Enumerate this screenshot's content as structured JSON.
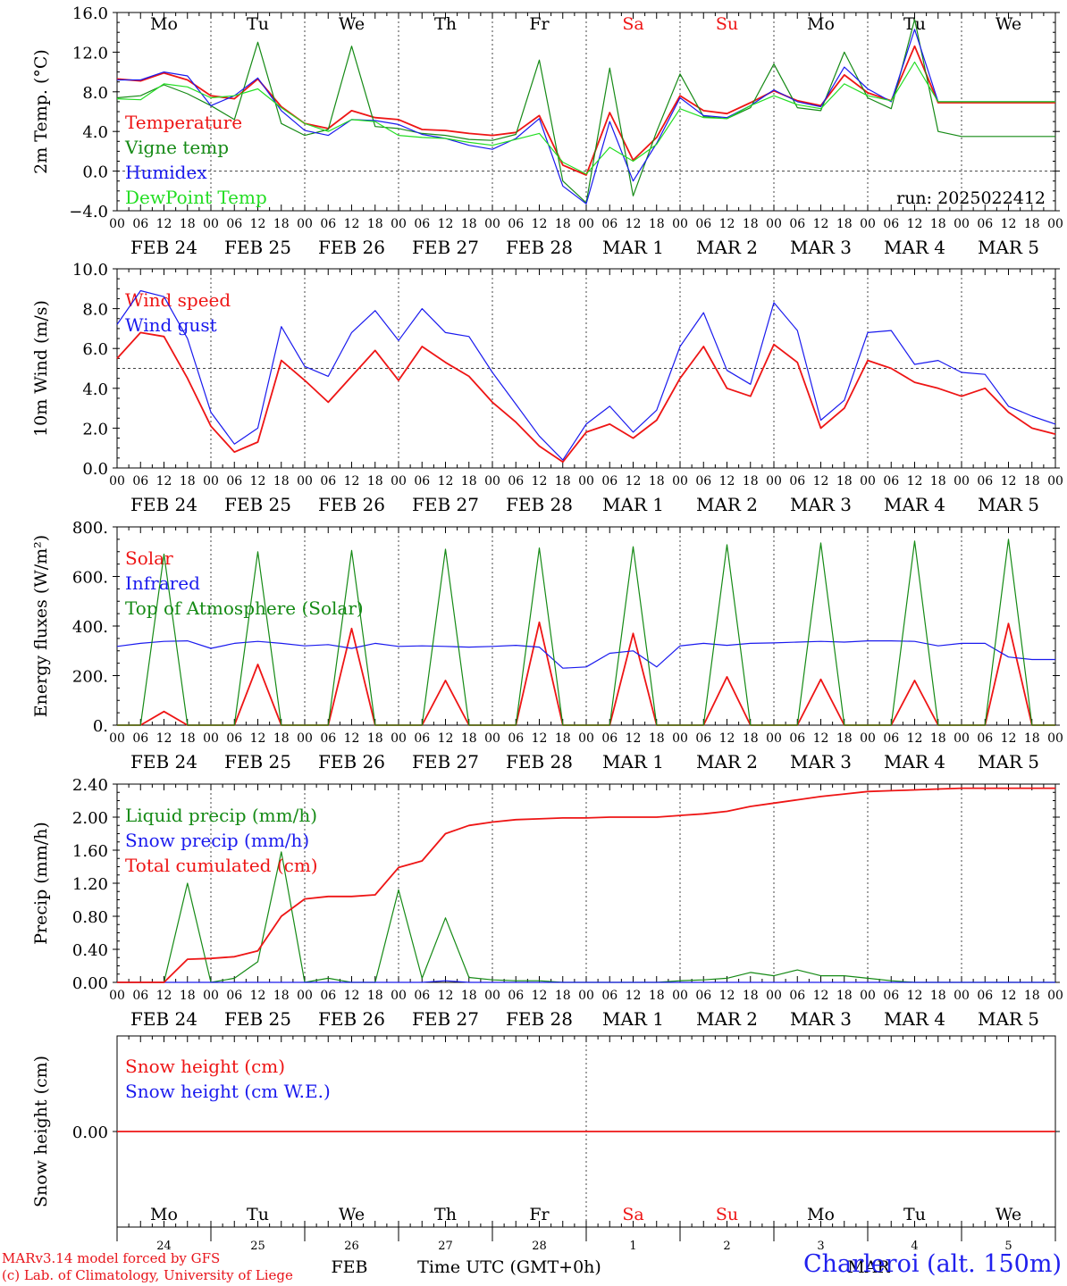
{
  "colors": {
    "red": "#ee1515",
    "green": "#158a15",
    "blue": "#1a1aee",
    "lightgreen": "#22dd22",
    "grid": "#444444"
  },
  "days": [
    {
      "date": "FEB 24",
      "dow": "Mo",
      "dnum": "24",
      "weekend": false
    },
    {
      "date": "FEB 25",
      "dow": "Tu",
      "dnum": "25",
      "weekend": false
    },
    {
      "date": "FEB 26",
      "dow": "We",
      "dnum": "26",
      "weekend": false
    },
    {
      "date": "FEB 27",
      "dow": "Th",
      "dnum": "27",
      "weekend": false
    },
    {
      "date": "FEB 28",
      "dow": "Fr",
      "dnum": "28",
      "weekend": false
    },
    {
      "date": "MAR  1",
      "dow": "Sa",
      "dnum": "1",
      "weekend": true
    },
    {
      "date": "MAR  2",
      "dow": "Su",
      "dnum": "2",
      "weekend": true
    },
    {
      "date": "MAR  3",
      "dow": "Mo",
      "dnum": "3",
      "weekend": false
    },
    {
      "date": "MAR  4",
      "dow": "Tu",
      "dnum": "4",
      "weekend": false
    },
    {
      "date": "MAR  5",
      "dow": "We",
      "dnum": "5",
      "weekend": false
    }
  ],
  "hour_ticks": [
    "00",
    "06",
    "12",
    "18"
  ],
  "bottom_month_labels": {
    "feb": "FEB",
    "mar": "MAR"
  },
  "time_axis_label": "Time UTC (GMT+0h)",
  "footer": {
    "line1": "MARv3.14 model forced by GFS",
    "line2": "(c) Lab. of Climatology, University of Liege",
    "station": "Charleroi (alt. 150m)"
  },
  "chart_data": [
    {
      "id": "temp",
      "type": "line",
      "ylabel": "2m Temp. (°C)",
      "ylim": [
        -4,
        16
      ],
      "yticks": [
        "16.0",
        "12.0",
        "8.0",
        "4.0",
        "0.0",
        "−4.0"
      ],
      "ytick_values": [
        16,
        12,
        8,
        4,
        0,
        -4
      ],
      "ref_line": 0,
      "annotation": "run: 2025022412",
      "show_dow": true,
      "x_hours": [
        0,
        6,
        12,
        18,
        24,
        30,
        36,
        42,
        48,
        54,
        60,
        66,
        72,
        78,
        84,
        90,
        96,
        102,
        108,
        114,
        120,
        126,
        132,
        138,
        144,
        150,
        156,
        162,
        168,
        174,
        180,
        186,
        192,
        198,
        204,
        210,
        216,
        222,
        228,
        234,
        240
      ],
      "series": [
        {
          "name": "Temperature",
          "color": "red",
          "values": [
            9.3,
            9.1,
            9.9,
            9.2,
            7.6,
            7.3,
            9.3,
            6.5,
            4.8,
            4.3,
            6.1,
            5.4,
            5.2,
            4.2,
            4.1,
            3.8,
            3.6,
            3.9,
            5.6,
            0.6,
            -0.4,
            5.9,
            1.1,
            3.4,
            7.6,
            6.1,
            5.8,
            6.9,
            8.1,
            7.1,
            6.6,
            9.7,
            7.9,
            7.1,
            12.6,
            6.9,
            6.9,
            6.9,
            6.9,
            6.9,
            6.9
          ]
        },
        {
          "name": "Vigne temp",
          "color": "green",
          "values": [
            7.4,
            7.6,
            8.7,
            7.8,
            6.6,
            5.2,
            13.0,
            4.8,
            3.6,
            4.2,
            12.6,
            4.5,
            4.3,
            3.8,
            3.6,
            3.2,
            3.1,
            3.7,
            11.2,
            -1.0,
            -3.2,
            10.4,
            -2.5,
            4.0,
            9.8,
            5.5,
            5.3,
            6.4,
            10.8,
            6.4,
            6.1,
            12.0,
            7.4,
            6.3,
            15.3,
            4.0,
            3.5,
            3.5,
            3.5,
            3.5,
            3.5
          ]
        },
        {
          "name": "Humidex",
          "color": "blue",
          "values": [
            9.2,
            9.2,
            10.0,
            9.6,
            6.6,
            7.6,
            9.4,
            6.1,
            4.1,
            3.6,
            5.2,
            5.1,
            4.7,
            3.7,
            3.3,
            2.6,
            2.2,
            3.3,
            5.3,
            -1.5,
            -3.3,
            5.0,
            -1.0,
            2.8,
            7.4,
            5.6,
            5.4,
            6.6,
            8.2,
            7.0,
            6.5,
            10.5,
            8.3,
            7.0,
            14.3,
            7.0,
            7.0,
            7.0,
            7.0,
            7.0,
            7.0
          ]
        },
        {
          "name": "DewPoint Temp",
          "color": "lightgreen",
          "values": [
            7.3,
            7.2,
            8.8,
            8.5,
            7.4,
            7.6,
            8.3,
            6.4,
            4.8,
            4.0,
            5.2,
            5.0,
            3.6,
            3.4,
            3.3,
            2.9,
            2.6,
            3.2,
            3.8,
            0.9,
            -0.3,
            2.4,
            1.0,
            2.7,
            6.3,
            5.4,
            5.3,
            6.6,
            7.6,
            6.7,
            6.3,
            8.8,
            7.6,
            7.1,
            11.0,
            7.0,
            7.0,
            7.0,
            7.0,
            7.0,
            7.0
          ]
        }
      ]
    },
    {
      "id": "wind",
      "type": "line",
      "ylabel": "10m Wind (m/s)",
      "ylim": [
        0,
        10
      ],
      "yticks": [
        "10.0",
        "8.0",
        "6.0",
        "4.0",
        "2.0",
        "0.0"
      ],
      "ytick_values": [
        10,
        8,
        6,
        4,
        2,
        0
      ],
      "ref_line": 5,
      "x_hours": [
        0,
        6,
        12,
        18,
        24,
        30,
        36,
        42,
        48,
        54,
        60,
        66,
        72,
        78,
        84,
        90,
        96,
        102,
        108,
        114,
        120,
        126,
        132,
        138,
        144,
        150,
        156,
        162,
        168,
        174,
        180,
        186,
        192,
        198,
        204,
        210,
        216,
        222,
        228,
        234,
        240
      ],
      "series": [
        {
          "name": "Wind speed",
          "color": "red",
          "values": [
            5.5,
            6.8,
            6.6,
            4.5,
            2.1,
            0.8,
            1.3,
            5.4,
            4.4,
            3.3,
            4.6,
            5.9,
            4.4,
            6.1,
            5.3,
            4.6,
            3.3,
            2.3,
            1.1,
            0.3,
            1.8,
            2.2,
            1.5,
            2.4,
            4.5,
            6.1,
            4.0,
            3.6,
            6.2,
            5.3,
            2.0,
            3.0,
            5.4,
            5.0,
            4.3,
            4.0,
            3.6,
            4.0,
            2.8,
            2.0,
            1.7
          ]
        },
        {
          "name": "Wind gust",
          "color": "blue",
          "values": [
            7.2,
            8.9,
            8.6,
            6.5,
            2.8,
            1.2,
            2.0,
            7.1,
            5.1,
            4.6,
            6.8,
            7.9,
            6.4,
            8.0,
            6.8,
            6.6,
            4.8,
            3.2,
            1.6,
            0.4,
            2.2,
            3.1,
            1.8,
            2.9,
            6.1,
            7.8,
            4.9,
            4.2,
            8.3,
            6.9,
            2.4,
            3.4,
            6.8,
            6.9,
            5.2,
            5.4,
            4.8,
            4.7,
            3.1,
            2.6,
            2.2
          ]
        }
      ]
    },
    {
      "id": "energy",
      "type": "line",
      "ylabel": "Energy fluxes (W/m²)",
      "ylim": [
        0,
        800
      ],
      "yticks": [
        "800.",
        "600.",
        "400.",
        "200.",
        "0."
      ],
      "ytick_values": [
        800,
        600,
        400,
        200,
        0
      ],
      "ref_line": null,
      "x_hours": [
        0,
        6,
        12,
        18,
        24,
        30,
        36,
        42,
        48,
        54,
        60,
        66,
        72,
        78,
        84,
        90,
        96,
        102,
        108,
        114,
        120,
        126,
        132,
        138,
        144,
        150,
        156,
        162,
        168,
        174,
        180,
        186,
        192,
        198,
        204,
        210,
        216,
        222,
        228,
        234,
        240
      ],
      "series": [
        {
          "name": "Solar",
          "color": "red",
          "values": [
            0,
            0,
            55,
            0,
            0,
            0,
            245,
            0,
            0,
            0,
            390,
            0,
            0,
            0,
            180,
            0,
            0,
            0,
            415,
            0,
            0,
            0,
            370,
            0,
            0,
            0,
            195,
            0,
            0,
            0,
            185,
            0,
            0,
            0,
            180,
            0,
            0,
            0,
            410,
            0,
            0
          ]
        },
        {
          "name": "Infrared",
          "color": "blue",
          "values": [
            318,
            330,
            338,
            340,
            310,
            330,
            338,
            330,
            320,
            325,
            310,
            330,
            318,
            320,
            318,
            315,
            318,
            322,
            315,
            230,
            235,
            290,
            300,
            235,
            320,
            330,
            322,
            330,
            332,
            335,
            338,
            335,
            340,
            340,
            338,
            320,
            330,
            330,
            275,
            265,
            265
          ]
        },
        {
          "name": "Top of Atmosphere (Solar)",
          "color": "green",
          "values": [
            0,
            0,
            690,
            0,
            0,
            0,
            700,
            0,
            0,
            0,
            705,
            0,
            0,
            0,
            710,
            0,
            0,
            0,
            715,
            0,
            0,
            0,
            720,
            0,
            0,
            0,
            728,
            0,
            0,
            0,
            735,
            0,
            0,
            0,
            743,
            0,
            0,
            0,
            750,
            0,
            0
          ]
        }
      ]
    },
    {
      "id": "precip",
      "type": "line",
      "ylabel": "Precip (mm/h)",
      "ylim": [
        0,
        2.4
      ],
      "yticks": [
        "2.40",
        "2.00",
        "1.60",
        "1.20",
        "0.80",
        "0.40",
        "0.00"
      ],
      "ytick_values": [
        2.4,
        2.0,
        1.6,
        1.2,
        0.8,
        0.4,
        0
      ],
      "ref_line": null,
      "x_hours": [
        0,
        6,
        12,
        18,
        24,
        30,
        36,
        42,
        48,
        54,
        60,
        66,
        72,
        78,
        84,
        90,
        96,
        102,
        108,
        114,
        120,
        126,
        132,
        138,
        144,
        150,
        156,
        162,
        168,
        174,
        180,
        186,
        192,
        198,
        204,
        210,
        216,
        222,
        228,
        234,
        240
      ],
      "series": [
        {
          "name": "Liquid precip (mm/h)",
          "color": "green",
          "values": [
            0,
            0,
            0,
            1.2,
            0,
            0.05,
            0.25,
            1.58,
            0,
            0.05,
            0,
            0,
            1.12,
            0.05,
            0.78,
            0.06,
            0.03,
            0.02,
            0.02,
            0,
            0,
            0,
            0,
            0,
            0.02,
            0.03,
            0.05,
            0.12,
            0.08,
            0.15,
            0.08,
            0.08,
            0.05,
            0.02,
            0,
            0,
            0,
            0,
            0,
            0,
            0
          ]
        },
        {
          "name": "Snow precip (mm/h)",
          "color": "blue",
          "values": [
            0,
            0,
            0,
            0,
            0,
            0,
            0,
            0,
            0,
            0,
            0,
            0,
            0,
            0,
            0.02,
            0,
            0,
            0,
            0,
            0,
            0,
            0,
            0,
            0,
            0,
            0,
            0,
            0,
            0,
            0,
            0,
            0,
            0,
            0,
            0,
            0,
            0,
            0,
            0,
            0,
            0
          ]
        },
        {
          "name": "Total cumulated (cm)",
          "color": "red",
          "values": [
            0,
            0,
            0,
            0.28,
            0.29,
            0.31,
            0.38,
            0.8,
            1.01,
            1.04,
            1.04,
            1.06,
            1.39,
            1.47,
            1.8,
            1.9,
            1.94,
            1.97,
            1.98,
            1.99,
            1.99,
            2.0,
            2.0,
            2.0,
            2.02,
            2.04,
            2.07,
            2.13,
            2.17,
            2.21,
            2.25,
            2.28,
            2.31,
            2.32,
            2.33,
            2.34,
            2.35,
            2.35,
            2.35,
            2.35,
            2.35
          ]
        }
      ]
    },
    {
      "id": "snow",
      "type": "line",
      "ylabel": "Snow height (cm)",
      "ylim": [
        -1,
        1
      ],
      "yticks": [
        "0.00"
      ],
      "ytick_values": [
        0
      ],
      "ref_line": null,
      "show_dow_bottom": true,
      "x_hours": [
        0,
        240
      ],
      "series": [
        {
          "name": "Snow height (cm)",
          "color": "red",
          "values": [
            0,
            0
          ]
        },
        {
          "name": "Snow height (cm W.E.)",
          "color": "blue",
          "values": [
            0,
            0
          ],
          "hidden_line": true
        }
      ]
    }
  ]
}
